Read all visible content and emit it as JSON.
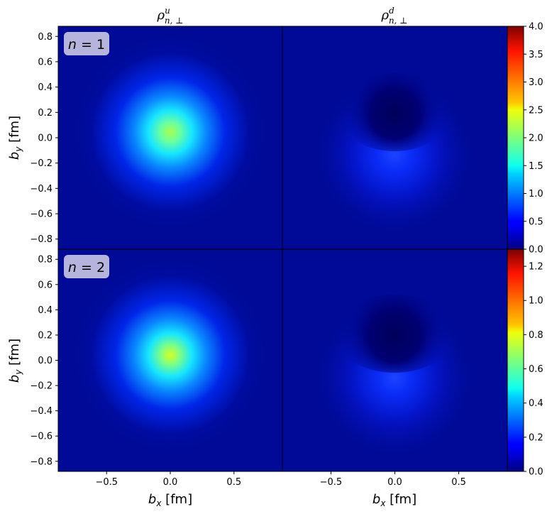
{
  "columns": [
    "ρ^u_{n,⊥}",
    "ρ^d_{n,⊥}"
  ],
  "colors": {
    "axes_edge": "#000000",
    "badge_fill": "#b4b4dc"
  },
  "colormap": "jet",
  "chart_data": [
    {
      "type": "heatmap",
      "panel": "n=1, u",
      "annotation": "n = 1",
      "ylabel": "b_y [fm]",
      "xlim": [
        -0.88,
        0.88
      ],
      "ylim": [
        -0.88,
        0.88
      ],
      "yticks": [
        "0.8",
        "0.6",
        "0.4",
        "0.2",
        "0.0",
        "−0.2",
        "−0.4",
        "−0.6",
        "−0.8"
      ],
      "vmin": 0.0,
      "vmax": 4.0,
      "peak": {
        "x": 0.0,
        "y": 0.04,
        "value": 2.1
      },
      "shape": "single-peak"
    },
    {
      "type": "heatmap",
      "panel": "n=1, d",
      "xlim": [
        -0.88,
        0.88
      ],
      "ylim": [
        -0.88,
        0.88
      ],
      "vmin": 0.0,
      "vmax": 4.0,
      "peak": {
        "x": 0.0,
        "y": -0.12,
        "value": 0.6
      },
      "dip": {
        "x": 0.0,
        "y": 0.08
      },
      "shape": "peak-with-dip-above"
    },
    {
      "type": "heatmap",
      "panel": "n=2, u",
      "annotation": "n = 2",
      "xlabel": "b_x [fm]",
      "ylabel": "b_y [fm]",
      "xlim": [
        -0.88,
        0.88
      ],
      "ylim": [
        -0.88,
        0.88
      ],
      "xticks": [
        "−0.5",
        "0.0",
        "0.5"
      ],
      "yticks": [
        "0.8",
        "0.6",
        "0.4",
        "0.2",
        "0.0",
        "−0.2",
        "−0.4",
        "−0.6",
        "−0.8"
      ],
      "vmin": 0.0,
      "vmax": 1.3,
      "peak": {
        "x": 0.0,
        "y": 0.04,
        "value": 0.75
      },
      "shape": "single-peak"
    },
    {
      "type": "heatmap",
      "panel": "n=2, d",
      "xlabel": "b_x [fm]",
      "xlim": [
        -0.88,
        0.88
      ],
      "ylim": [
        -0.88,
        0.88
      ],
      "xticks": [
        "−0.5",
        "0.0",
        "0.5"
      ],
      "vmin": 0.0,
      "vmax": 1.3,
      "peak": {
        "x": 0.0,
        "y": -0.12,
        "value": 0.22
      },
      "dip": {
        "x": 0.0,
        "y": 0.08
      },
      "shape": "peak-with-dip-above"
    },
    {
      "type": "colorbar",
      "row": 1,
      "range": [
        0.0,
        4.0
      ],
      "ticks": [
        "4.0",
        "3.5",
        "3.0",
        "2.5",
        "2.0",
        "1.5",
        "1.0",
        "0.5",
        "0.0"
      ]
    },
    {
      "type": "colorbar",
      "row": 2,
      "range": [
        0.0,
        1.3
      ],
      "ticks": [
        "1.2",
        "1.0",
        "0.8",
        "0.6",
        "0.4",
        "0.2",
        "0.0"
      ]
    }
  ]
}
